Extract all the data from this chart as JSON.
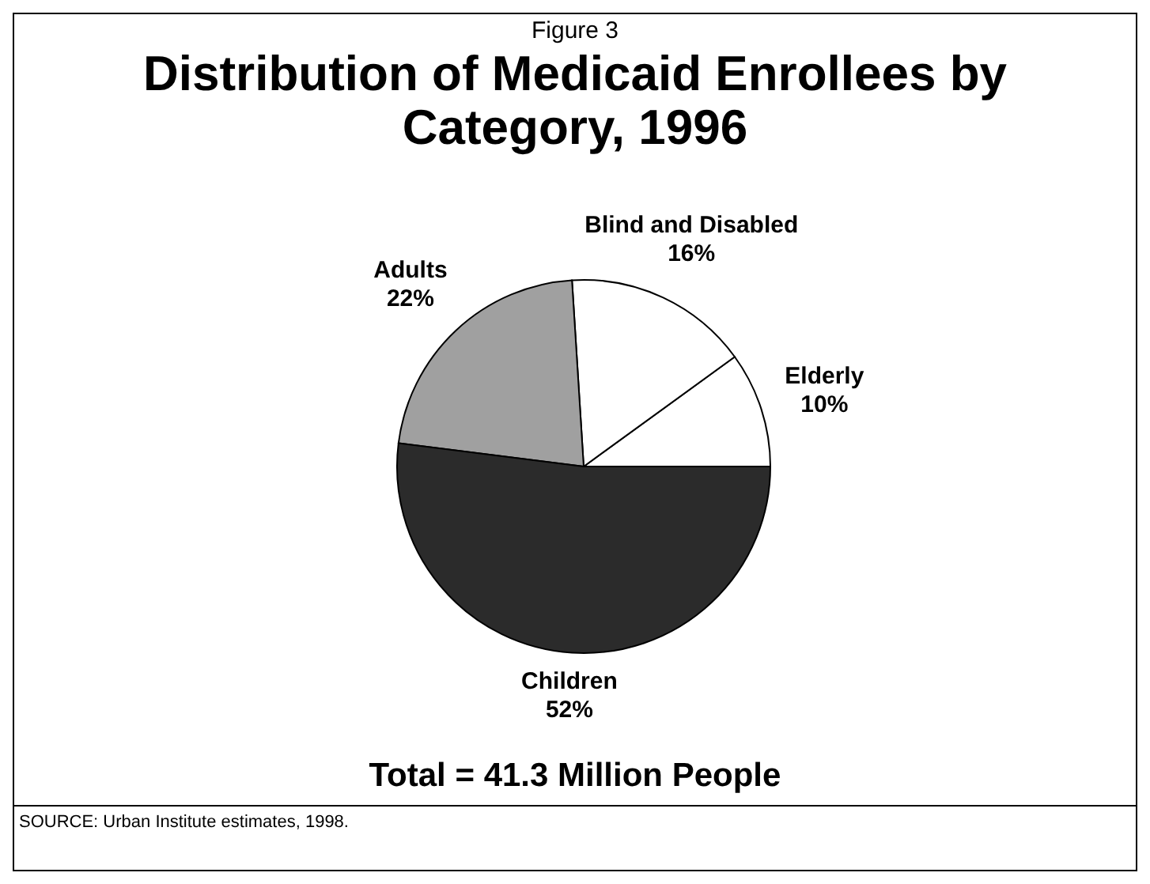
{
  "chart_data": {
    "type": "pie",
    "subtitle": "Figure 3",
    "title": "Distribution of Medicaid Enrollees by Category, 1996",
    "categories": [
      "Elderly",
      "Blind and Disabled",
      "Adults",
      "Children"
    ],
    "values": [
      10,
      16,
      22,
      52
    ],
    "colors": [
      "#ffffff",
      "#ffffff",
      "#a0a0a0",
      "#2b2b2b"
    ],
    "value_labels": [
      "10%",
      "16%",
      "22%",
      "52%"
    ],
    "annotations": [
      "Total = 41.3 Million People",
      "SOURCE:  Urban Institute estimates, 1998."
    ]
  }
}
